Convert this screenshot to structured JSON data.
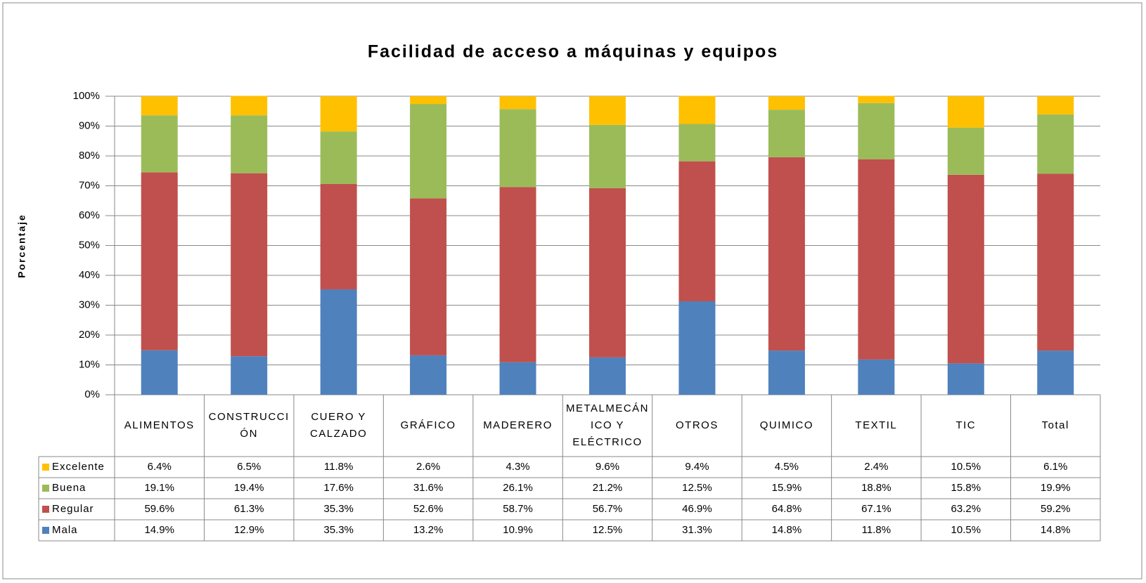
{
  "chart_data": {
    "type": "stacked_bar",
    "title": "Facilidad de acceso a máquinas y equipos",
    "y_label": "Porcentaje",
    "categories": [
      "ALIMENTOS",
      "CONSTRUCCIÓN",
      "CUERO Y CALZADO",
      "GRÁFICO",
      "MADERERO",
      "METALMECÁNICO Y ELÉCTRICO",
      "OTROS",
      "QUIMICO",
      "TEXTIL",
      "TIC",
      "Total"
    ],
    "series": [
      {
        "name": "Excelente",
        "color": "#ffc000",
        "values": [
          6.4,
          6.5,
          11.8,
          2.6,
          4.3,
          9.6,
          9.4,
          4.5,
          2.4,
          10.5,
          6.1
        ],
        "value_labels": [
          "6.4%",
          "6.5%",
          "11.8%",
          "2.6%",
          "4.3%",
          "9.6%",
          "9.4%",
          "4.5%",
          "2.4%",
          "10.5%",
          "6.1%"
        ]
      },
      {
        "name": "Buena",
        "color": "#9bbb59",
        "values": [
          19.1,
          19.4,
          17.6,
          31.6,
          26.1,
          21.2,
          12.5,
          15.9,
          18.8,
          15.8,
          19.9
        ],
        "value_labels": [
          "19.1%",
          "19.4%",
          "17.6%",
          "31.6%",
          "26.1%",
          "21.2%",
          "12.5%",
          "15.9%",
          "18.8%",
          "15.8%",
          "19.9%"
        ]
      },
      {
        "name": "Regular",
        "color": "#c0504d",
        "values": [
          59.6,
          61.3,
          35.3,
          52.6,
          58.7,
          56.7,
          46.9,
          64.8,
          67.1,
          63.2,
          59.2
        ],
        "value_labels": [
          "59.6%",
          "61.3%",
          "35.3%",
          "52.6%",
          "58.7%",
          "56.7%",
          "46.9%",
          "64.8%",
          "67.1%",
          "63.2%",
          "59.2%"
        ]
      },
      {
        "name": "Mala",
        "color": "#4f81bd",
        "values": [
          14.9,
          12.9,
          35.3,
          13.2,
          10.9,
          12.5,
          31.3,
          14.8,
          11.8,
          10.5,
          14.8
        ],
        "value_labels": [
          "14.9%",
          "12.9%",
          "35.3%",
          "13.2%",
          "10.9%",
          "12.5%",
          "31.3%",
          "14.8%",
          "11.8%",
          "10.5%",
          "14.8%"
        ]
      }
    ],
    "ylim": [
      0,
      100
    ],
    "yticks": [
      {
        "value": 0,
        "label": "0%"
      },
      {
        "value": 10,
        "label": "10%"
      },
      {
        "value": 20,
        "label": "20%"
      },
      {
        "value": 30,
        "label": "30%"
      },
      {
        "value": 40,
        "label": "40%"
      },
      {
        "value": 50,
        "label": "50%"
      },
      {
        "value": 60,
        "label": "60%"
      },
      {
        "value": 70,
        "label": "70%"
      },
      {
        "value": 80,
        "label": "80%"
      },
      {
        "value": 90,
        "label": "90%"
      },
      {
        "value": 100,
        "label": "100%"
      }
    ],
    "grid": true
  }
}
